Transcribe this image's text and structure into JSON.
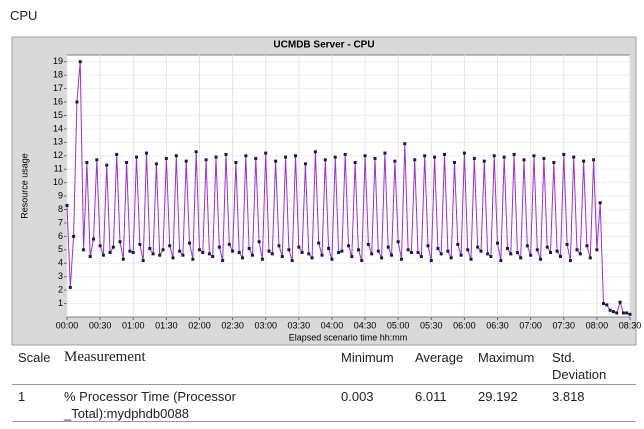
{
  "header": {
    "title": "CPU"
  },
  "chart_data": {
    "type": "line",
    "title": "UCMDB Server - CPU",
    "x_label": "Elapsed scenario time hh:mm",
    "y_label": "Resource usage",
    "xlim": [
      0,
      510
    ],
    "ylim": [
      0,
      19.5
    ],
    "grid": true,
    "xticks": [
      {
        "value": 0,
        "label": "00:00"
      },
      {
        "value": 30,
        "label": "00:30"
      },
      {
        "value": 60,
        "label": "01:00"
      },
      {
        "value": 90,
        "label": "01:30"
      },
      {
        "value": 120,
        "label": "02:00"
      },
      {
        "value": 150,
        "label": "02:30"
      },
      {
        "value": 180,
        "label": "03:00"
      },
      {
        "value": 210,
        "label": "03:30"
      },
      {
        "value": 240,
        "label": "04:00"
      },
      {
        "value": 270,
        "label": "04:30"
      },
      {
        "value": 300,
        "label": "05:00"
      },
      {
        "value": 330,
        "label": "05:30"
      },
      {
        "value": 360,
        "label": "06:00"
      },
      {
        "value": 390,
        "label": "06:30"
      },
      {
        "value": 420,
        "label": "07:00"
      },
      {
        "value": 450,
        "label": "07:30"
      },
      {
        "value": 480,
        "label": "08:00"
      },
      {
        "value": 510,
        "label": "08:30"
      }
    ],
    "yticks": [
      1,
      2,
      3,
      4,
      5,
      6,
      7,
      8,
      9,
      10,
      11,
      12,
      13,
      14,
      15,
      16,
      17,
      18,
      19
    ],
    "x": [
      0,
      3,
      6,
      9,
      12,
      15,
      18,
      21,
      24,
      27,
      30,
      33,
      36,
      39,
      42,
      45,
      48,
      51,
      54,
      57,
      60,
      63,
      66,
      69,
      72,
      75,
      78,
      81,
      84,
      87,
      90,
      93,
      96,
      99,
      102,
      105,
      108,
      111,
      114,
      117,
      120,
      123,
      126,
      129,
      132,
      135,
      138,
      141,
      144,
      147,
      150,
      153,
      156,
      159,
      162,
      165,
      168,
      171,
      174,
      177,
      180,
      183,
      186,
      189,
      192,
      195,
      198,
      201,
      204,
      207,
      210,
      213,
      216,
      219,
      222,
      225,
      228,
      231,
      234,
      237,
      240,
      243,
      246,
      249,
      252,
      255,
      258,
      261,
      264,
      267,
      270,
      273,
      276,
      279,
      282,
      285,
      288,
      291,
      294,
      297,
      300,
      303,
      306,
      309,
      312,
      315,
      318,
      321,
      324,
      327,
      330,
      333,
      336,
      339,
      342,
      345,
      348,
      351,
      354,
      357,
      360,
      363,
      366,
      369,
      372,
      375,
      378,
      381,
      384,
      387,
      390,
      393,
      396,
      399,
      402,
      405,
      408,
      411,
      414,
      417,
      420,
      423,
      426,
      429,
      432,
      435,
      438,
      441,
      444,
      447,
      450,
      453,
      456,
      459,
      462,
      465,
      468,
      471,
      474,
      477,
      480,
      483,
      486,
      489,
      492,
      495,
      498,
      501,
      504,
      507,
      510
    ],
    "series": [
      {
        "name": "% Processor Time (Processor _Total):mydphdb0088",
        "color": "#9b30d9",
        "marker_color": "#1a1a40",
        "values": [
          8.3,
          2.2,
          6.0,
          16.0,
          19.0,
          5.0,
          11.5,
          4.5,
          5.8,
          11.7,
          5.3,
          4.6,
          11.3,
          4.8,
          5.2,
          12.1,
          5.6,
          4.3,
          11.5,
          4.9,
          4.8,
          11.9,
          5.4,
          4.2,
          12.2,
          5.1,
          4.7,
          11.4,
          4.6,
          5.0,
          11.8,
          5.3,
          4.4,
          12.0,
          4.9,
          4.6,
          11.6,
          5.5,
          4.3,
          12.3,
          5.0,
          4.8,
          11.7,
          4.7,
          4.5,
          11.9,
          5.2,
          4.2,
          12.1,
          5.4,
          4.9,
          11.5,
          4.8,
          4.4,
          12.0,
          5.1,
          4.6,
          11.8,
          5.6,
          4.3,
          12.2,
          4.9,
          4.7,
          11.6,
          5.3,
          4.5,
          11.9,
          5.0,
          4.2,
          12.0,
          5.2,
          4.8,
          11.4,
          4.7,
          4.4,
          12.3,
          5.5,
          4.6,
          11.7,
          5.1,
          4.3,
          11.9,
          4.8,
          4.9,
          12.1,
          5.3,
          4.5,
          11.5,
          5.0,
          4.2,
          12.0,
          5.4,
          4.7,
          11.8,
          4.9,
          4.4,
          12.2,
          5.2,
          4.6,
          11.6,
          5.6,
          4.3,
          12.9,
          5.0,
          4.8,
          11.7,
          4.8,
          4.5,
          12.0,
          5.3,
          4.2,
          11.9,
          5.1,
          4.7,
          12.1,
          4.9,
          4.4,
          11.5,
          5.4,
          4.6,
          12.2,
          5.0,
          4.3,
          11.8,
          5.2,
          4.9,
          11.6,
          4.7,
          4.5,
          12.0,
          5.5,
          4.2,
          11.9,
          5.1,
          4.7,
          12.1,
          4.8,
          4.4,
          11.7,
          5.3,
          4.6,
          12.0,
          5.0,
          4.3,
          11.8,
          5.2,
          4.8,
          11.5,
          4.9,
          4.5,
          12.1,
          5.4,
          4.2,
          11.9,
          5.0,
          4.7,
          11.6,
          5.3,
          4.4,
          11.7,
          5.0,
          8.5,
          1.0,
          0.9,
          0.5,
          0.4,
          0.3,
          1.1,
          0.3,
          0.3,
          0.2
        ]
      }
    ]
  },
  "table": {
    "headers": [
      "Scale",
      "Measurement",
      "Minimum",
      "Average",
      "Maximum",
      "Std. Deviation"
    ],
    "rows": [
      [
        "1",
        "% Processor Time (Processor _Total):mydphdb0088",
        "0.003",
        "6.011",
        "29.192",
        "3.818"
      ]
    ]
  }
}
